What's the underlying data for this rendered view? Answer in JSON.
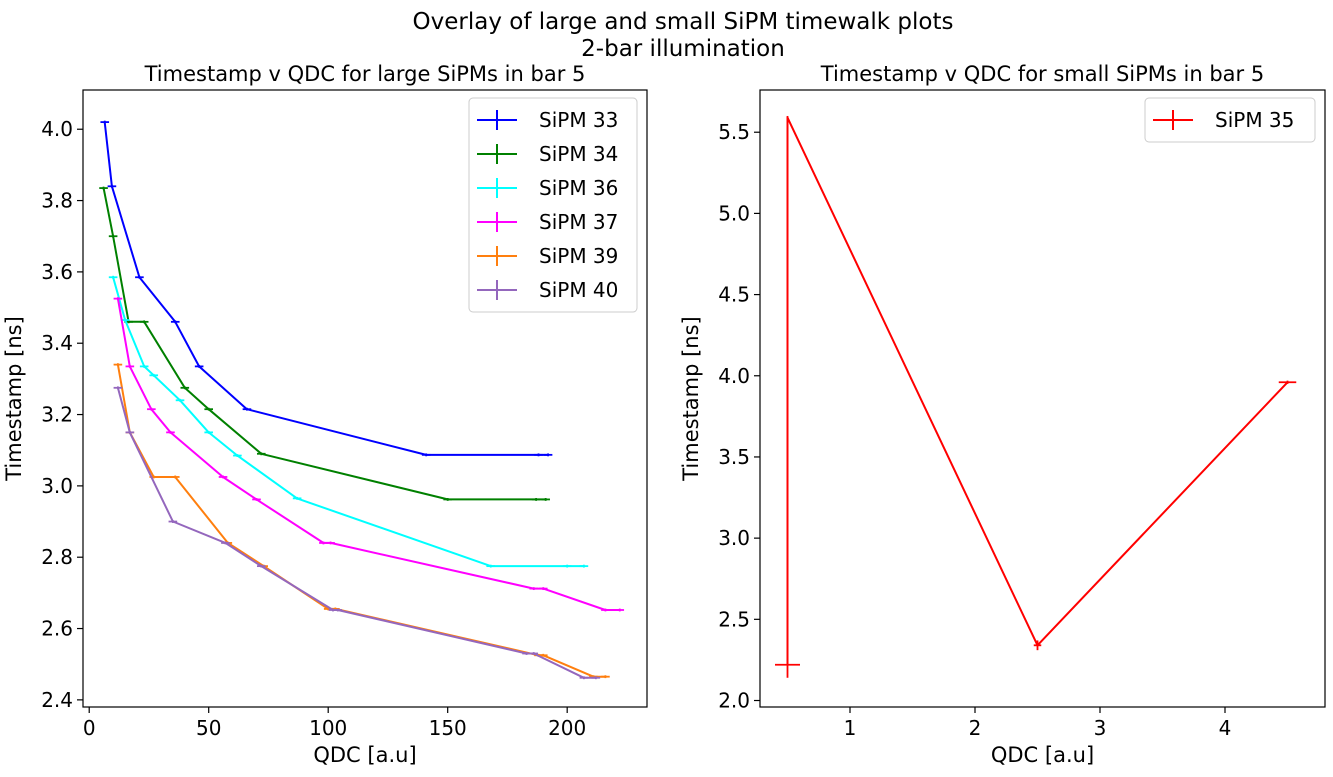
{
  "figure": {
    "suptitle_line1": "Overlay of large and small SiPM timewalk plots",
    "suptitle_line2": "2-bar illumination"
  },
  "chart_data": [
    {
      "type": "line",
      "title": "Timestamp v QDC for large SiPMs in bar 5",
      "xlabel": "QDC [a.u]",
      "ylabel": "Timestamp [ns]",
      "xlim": [
        -2.6,
        233.4
      ],
      "ylim": [
        2.38,
        4.11
      ],
      "xticks": [
        0,
        50,
        100,
        150,
        200
      ],
      "yticks": [
        2.4,
        2.6,
        2.8,
        3.0,
        3.2,
        3.4,
        3.6,
        3.8,
        4.0
      ],
      "ytick_labels": [
        "2.4",
        "2.6",
        "2.8",
        "3.0",
        "3.2",
        "3.4",
        "3.6",
        "3.8",
        "4.0"
      ],
      "legend_position": "upper right",
      "grid": false,
      "series": [
        {
          "name": "SiPM 33",
          "color": "#0000ff",
          "points": [
            [
              6.5,
              4.02
            ],
            [
              9.5,
              3.84
            ],
            [
              21,
              3.585
            ],
            [
              36,
              3.46
            ],
            [
              46,
              3.335
            ],
            [
              66,
              3.215
            ],
            [
              141,
              3.087
            ],
            [
              188,
              3.087
            ],
            [
              192,
              3.087
            ]
          ]
        },
        {
          "name": "SiPM 34",
          "color": "#008000",
          "points": [
            [
              6,
              3.835
            ],
            [
              10,
              3.7
            ],
            [
              16.5,
              3.46
            ],
            [
              23,
              3.46
            ],
            [
              40,
              3.275
            ],
            [
              50,
              3.215
            ],
            [
              72,
              3.09
            ],
            [
              150,
              2.962
            ],
            [
              187,
              2.962
            ],
            [
              191,
              2.962
            ]
          ]
        },
        {
          "name": "SiPM 36",
          "color": "#00ffff",
          "points": [
            [
              10,
              3.585
            ],
            [
              15,
              3.465
            ],
            [
              23,
              3.335
            ],
            [
              27,
              3.31
            ],
            [
              38,
              3.24
            ],
            [
              50,
              3.15
            ],
            [
              62,
              3.085
            ],
            [
              87,
              2.965
            ],
            [
              168,
              2.775
            ],
            [
              200,
              2.775
            ],
            [
              207,
              2.775
            ]
          ]
        },
        {
          "name": "SiPM 37",
          "color": "#ff00ff",
          "points": [
            [
              12,
              3.525
            ],
            [
              17,
              3.335
            ],
            [
              26,
              3.215
            ],
            [
              34,
              3.15
            ],
            [
              56,
              3.025
            ],
            [
              70,
              2.962
            ],
            [
              98,
              2.84
            ],
            [
              101,
              2.84
            ],
            [
              186,
              2.712
            ],
            [
              190,
              2.712
            ],
            [
              216,
              2.652
            ],
            [
              222,
              2.652
            ]
          ]
        },
        {
          "name": "SiPM 39",
          "color": "#ff7f0e",
          "points": [
            [
              12,
              3.34
            ],
            [
              17,
              3.15
            ],
            [
              27,
              3.025
            ],
            [
              36,
              3.025
            ],
            [
              58,
              2.84
            ],
            [
              73,
              2.775
            ],
            [
              100,
              2.655
            ],
            [
              103,
              2.655
            ],
            [
              188,
              2.525
            ],
            [
              190,
              2.525
            ],
            [
              211,
              2.465
            ],
            [
              216,
              2.465
            ]
          ]
        },
        {
          "name": "SiPM 40",
          "color": "#9467bd",
          "points": [
            [
              12,
              3.275
            ],
            [
              17,
              3.15
            ],
            [
              35,
              2.9
            ],
            [
              57,
              2.84
            ],
            [
              72,
              2.775
            ],
            [
              102,
              2.652
            ],
            [
              104,
              2.652
            ],
            [
              183,
              2.53
            ],
            [
              186,
              2.53
            ],
            [
              207,
              2.462
            ],
            [
              212,
              2.462
            ]
          ]
        }
      ]
    },
    {
      "type": "line",
      "title": "Timestamp v QDC for small SiPMs in bar 5",
      "xlabel": "QDC [a.u]",
      "ylabel": "Timestamp [ns]",
      "xlim": [
        0.28,
        4.8
      ],
      "ylim": [
        1.96,
        5.76
      ],
      "xticks": [
        1,
        2,
        3,
        4
      ],
      "yticks": [
        2.0,
        2.5,
        3.0,
        3.5,
        4.0,
        4.5,
        5.0,
        5.5
      ],
      "ytick_labels": [
        "2.0",
        "2.5",
        "3.0",
        "3.5",
        "4.0",
        "4.5",
        "5.0",
        "5.5"
      ],
      "legend_position": "upper right",
      "grid": false,
      "series": [
        {
          "name": "SiPM 35",
          "color": "#ff0000",
          "points": [
            [
              0.5,
              2.22
            ],
            [
              0.5,
              5.59
            ],
            [
              2.5,
              2.34
            ],
            [
              4.5,
              3.96
            ]
          ],
          "xerr": [
            0.1,
            0,
            0.03,
            0.07
          ],
          "yerr": [
            0.08,
            0.01,
            0.03,
            0.01
          ]
        }
      ]
    }
  ]
}
